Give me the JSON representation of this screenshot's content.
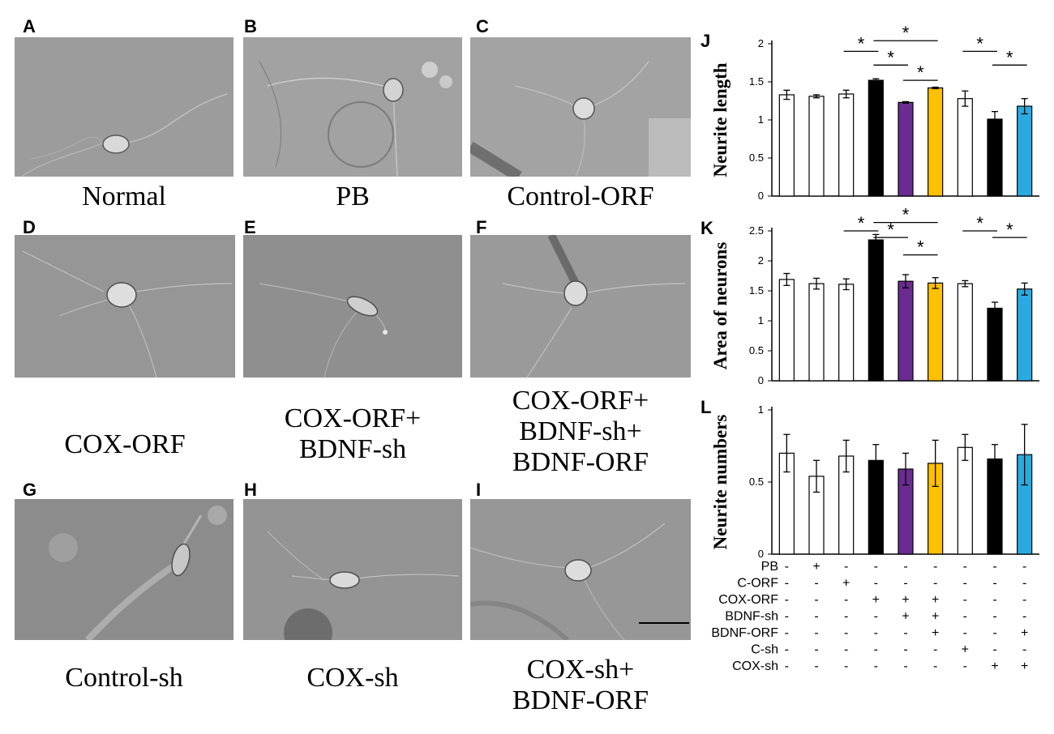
{
  "panels": [
    {
      "letter": "A",
      "caption": "Normal",
      "tone": "#9b9b9b"
    },
    {
      "letter": "B",
      "caption": "PB",
      "tone": "#a3a3a3"
    },
    {
      "letter": "C",
      "caption": "Control-ORF",
      "tone": "#a0a0a0"
    },
    {
      "letter": "D",
      "caption": "COX-ORF",
      "tone": "#959595"
    },
    {
      "letter": "E",
      "caption": "COX-ORF+\nBDNF-sh",
      "tone": "#8f8f8f"
    },
    {
      "letter": "F",
      "caption": "COX-ORF+\nBDNF-sh+\nBDNF-ORF",
      "tone": "#999999"
    },
    {
      "letter": "G",
      "caption": "Control-sh",
      "tone": "#8c8c8c"
    },
    {
      "letter": "H",
      "caption": "COX-sh",
      "tone": "#949494"
    },
    {
      "letter": "I",
      "caption": "COX-sh+\nBDNF-ORF",
      "tone": "#979797"
    }
  ],
  "chart_data": [
    {
      "panel": "J",
      "type": "bar",
      "ylabel": "Neurite length",
      "ylim": [
        0,
        2
      ],
      "yticks": [
        "0",
        "0.5",
        "1",
        "1.5",
        "2"
      ],
      "values": [
        1.33,
        1.31,
        1.34,
        1.52,
        1.23,
        1.42,
        1.28,
        1.01,
        1.18
      ],
      "errors": [
        0.06,
        0.02,
        0.05,
        0.02,
        0.01,
        0.01,
        0.1,
        0.1,
        0.1
      ],
      "significance": [
        {
          "from": 2,
          "to": 3,
          "y": 1.9,
          "label": "*"
        },
        {
          "from": 3,
          "to": 5,
          "y": 2.04,
          "label": "*"
        },
        {
          "from": 3,
          "to": 4,
          "y": 1.72,
          "label": "*"
        },
        {
          "from": 4,
          "to": 5,
          "y": 1.52,
          "label": "*"
        },
        {
          "from": 6,
          "to": 7,
          "y": 1.9,
          "label": "*"
        },
        {
          "from": 7,
          "to": 8,
          "y": 1.72,
          "label": "*"
        }
      ]
    },
    {
      "panel": "K",
      "type": "bar",
      "ylabel": "Area of neurons",
      "ylim": [
        0,
        2.5
      ],
      "yticks": [
        "0",
        "0.5",
        "1",
        "1.5",
        "2",
        "2.5"
      ],
      "values": [
        1.69,
        1.62,
        1.61,
        2.35,
        1.66,
        1.63,
        1.62,
        1.21,
        1.53
      ],
      "errors": [
        0.1,
        0.09,
        0.09,
        0.09,
        0.11,
        0.09,
        0.05,
        0.1,
        0.1
      ],
      "significance": [
        {
          "from": 2,
          "to": 3,
          "y": 2.5,
          "label": "*"
        },
        {
          "from": 3,
          "to": 5,
          "y": 2.64,
          "label": "*"
        },
        {
          "from": 3,
          "to": 4,
          "y": 2.39,
          "label": "*"
        },
        {
          "from": 4,
          "to": 5,
          "y": 2.1,
          "label": "*"
        },
        {
          "from": 6,
          "to": 7,
          "y": 2.5,
          "label": "*"
        },
        {
          "from": 7,
          "to": 8,
          "y": 2.39,
          "label": "*"
        }
      ]
    },
    {
      "panel": "L",
      "type": "bar",
      "ylabel": "Neurite numbers",
      "ylim": [
        0,
        1
      ],
      "yticks": [
        "0",
        "0.5",
        "1"
      ],
      "values": [
        0.7,
        0.54,
        0.68,
        0.65,
        0.59,
        0.63,
        0.74,
        0.66,
        0.69
      ],
      "errors": [
        0.13,
        0.11,
        0.11,
        0.11,
        0.11,
        0.16,
        0.09,
        0.1,
        0.21
      ],
      "significance": []
    }
  ],
  "bar_colors": [
    "#ffffff",
    "#ffffff",
    "#ffffff",
    "#000000",
    "#6a2c91",
    "#ffc000",
    "#ffffff",
    "#000000",
    "#29abe2"
  ],
  "treatment_table": {
    "rows": [
      {
        "label": "PB",
        "marks": [
          "-",
          "+",
          "-",
          "-",
          "-",
          "-",
          "-",
          "-",
          "-"
        ]
      },
      {
        "label": "C-ORF",
        "marks": [
          "-",
          "-",
          "+",
          "-",
          "-",
          "-",
          "-",
          "-",
          "-"
        ]
      },
      {
        "label": "COX-ORF",
        "marks": [
          "-",
          "-",
          "-",
          "+",
          "+",
          "+",
          "-",
          "-",
          "-"
        ]
      },
      {
        "label": "BDNF-sh",
        "marks": [
          "-",
          "-",
          "-",
          "-",
          "+",
          "+",
          "-",
          "-",
          "-"
        ]
      },
      {
        "label": "BDNF-ORF",
        "marks": [
          "-",
          "-",
          "-",
          "-",
          "-",
          "+",
          "-",
          "-",
          "+"
        ]
      },
      {
        "label": "C-sh",
        "marks": [
          "-",
          "-",
          "-",
          "-",
          "-",
          "-",
          "+",
          "-",
          "-"
        ]
      },
      {
        "label": "COX-sh",
        "marks": [
          "-",
          "-",
          "-",
          "-",
          "-",
          "-",
          "-",
          "+",
          "+"
        ]
      }
    ]
  }
}
